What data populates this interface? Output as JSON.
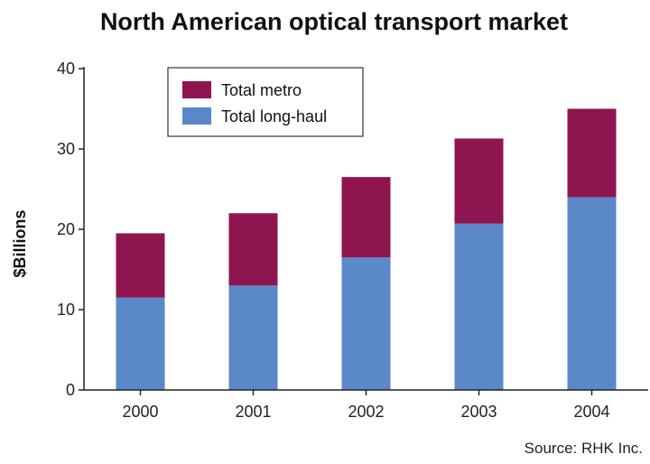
{
  "chart_data": {
    "type": "bar",
    "stacked": true,
    "title": "North American optical transport market",
    "ylabel": "$Billions",
    "xlabel": "",
    "categories": [
      "2000",
      "2001",
      "2002",
      "2003",
      "2004"
    ],
    "ylim": [
      0,
      40
    ],
    "yticks": [
      "0",
      "10",
      "20",
      "30",
      "40"
    ],
    "series": [
      {
        "name": "Total long-haul",
        "color": "#5a88c8",
        "values": [
          11.5,
          13,
          16.5,
          20.7,
          24
        ]
      },
      {
        "name": "Total metro",
        "color": "#8e1550",
        "values": [
          8,
          9,
          10,
          10.6,
          11
        ]
      }
    ],
    "legend_position": "top-left",
    "grid": false,
    "source": "Source: RHK Inc."
  }
}
